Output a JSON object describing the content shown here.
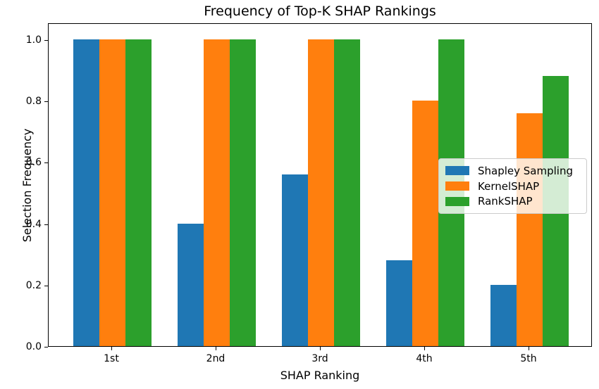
{
  "chart_data": {
    "type": "bar",
    "title": "Frequency of Top-K SHAP Rankings",
    "xlabel": "SHAP Ranking",
    "ylabel": "Selection Frequency",
    "categories": [
      "1st",
      "2nd",
      "3rd",
      "4th",
      "5th"
    ],
    "series": [
      {
        "name": "Shapley Sampling",
        "color": "#1f77b4",
        "values": [
          1.0,
          0.4,
          0.56,
          0.28,
          0.2
        ]
      },
      {
        "name": "KernelSHAP",
        "color": "#ff7f0e",
        "values": [
          1.0,
          1.0,
          1.0,
          0.8,
          0.76
        ]
      },
      {
        "name": "RankSHAP",
        "color": "#2ca02c",
        "values": [
          1.0,
          1.0,
          1.0,
          1.0,
          0.88
        ]
      }
    ],
    "ylim": [
      0,
      1.055
    ],
    "yticks": [
      0.0,
      0.2,
      0.4,
      0.6,
      0.8,
      1.0
    ],
    "ytick_labels": [
      "0.0",
      "0.2",
      "0.4",
      "0.6",
      "0.8",
      "1.0"
    ],
    "xtick_labels": [
      "1st",
      "2nd",
      "3rd",
      "4th",
      "5th"
    ],
    "grid": false,
    "legend_position": "center right",
    "background_color": "#ffffff",
    "spine_color": "#000000"
  }
}
